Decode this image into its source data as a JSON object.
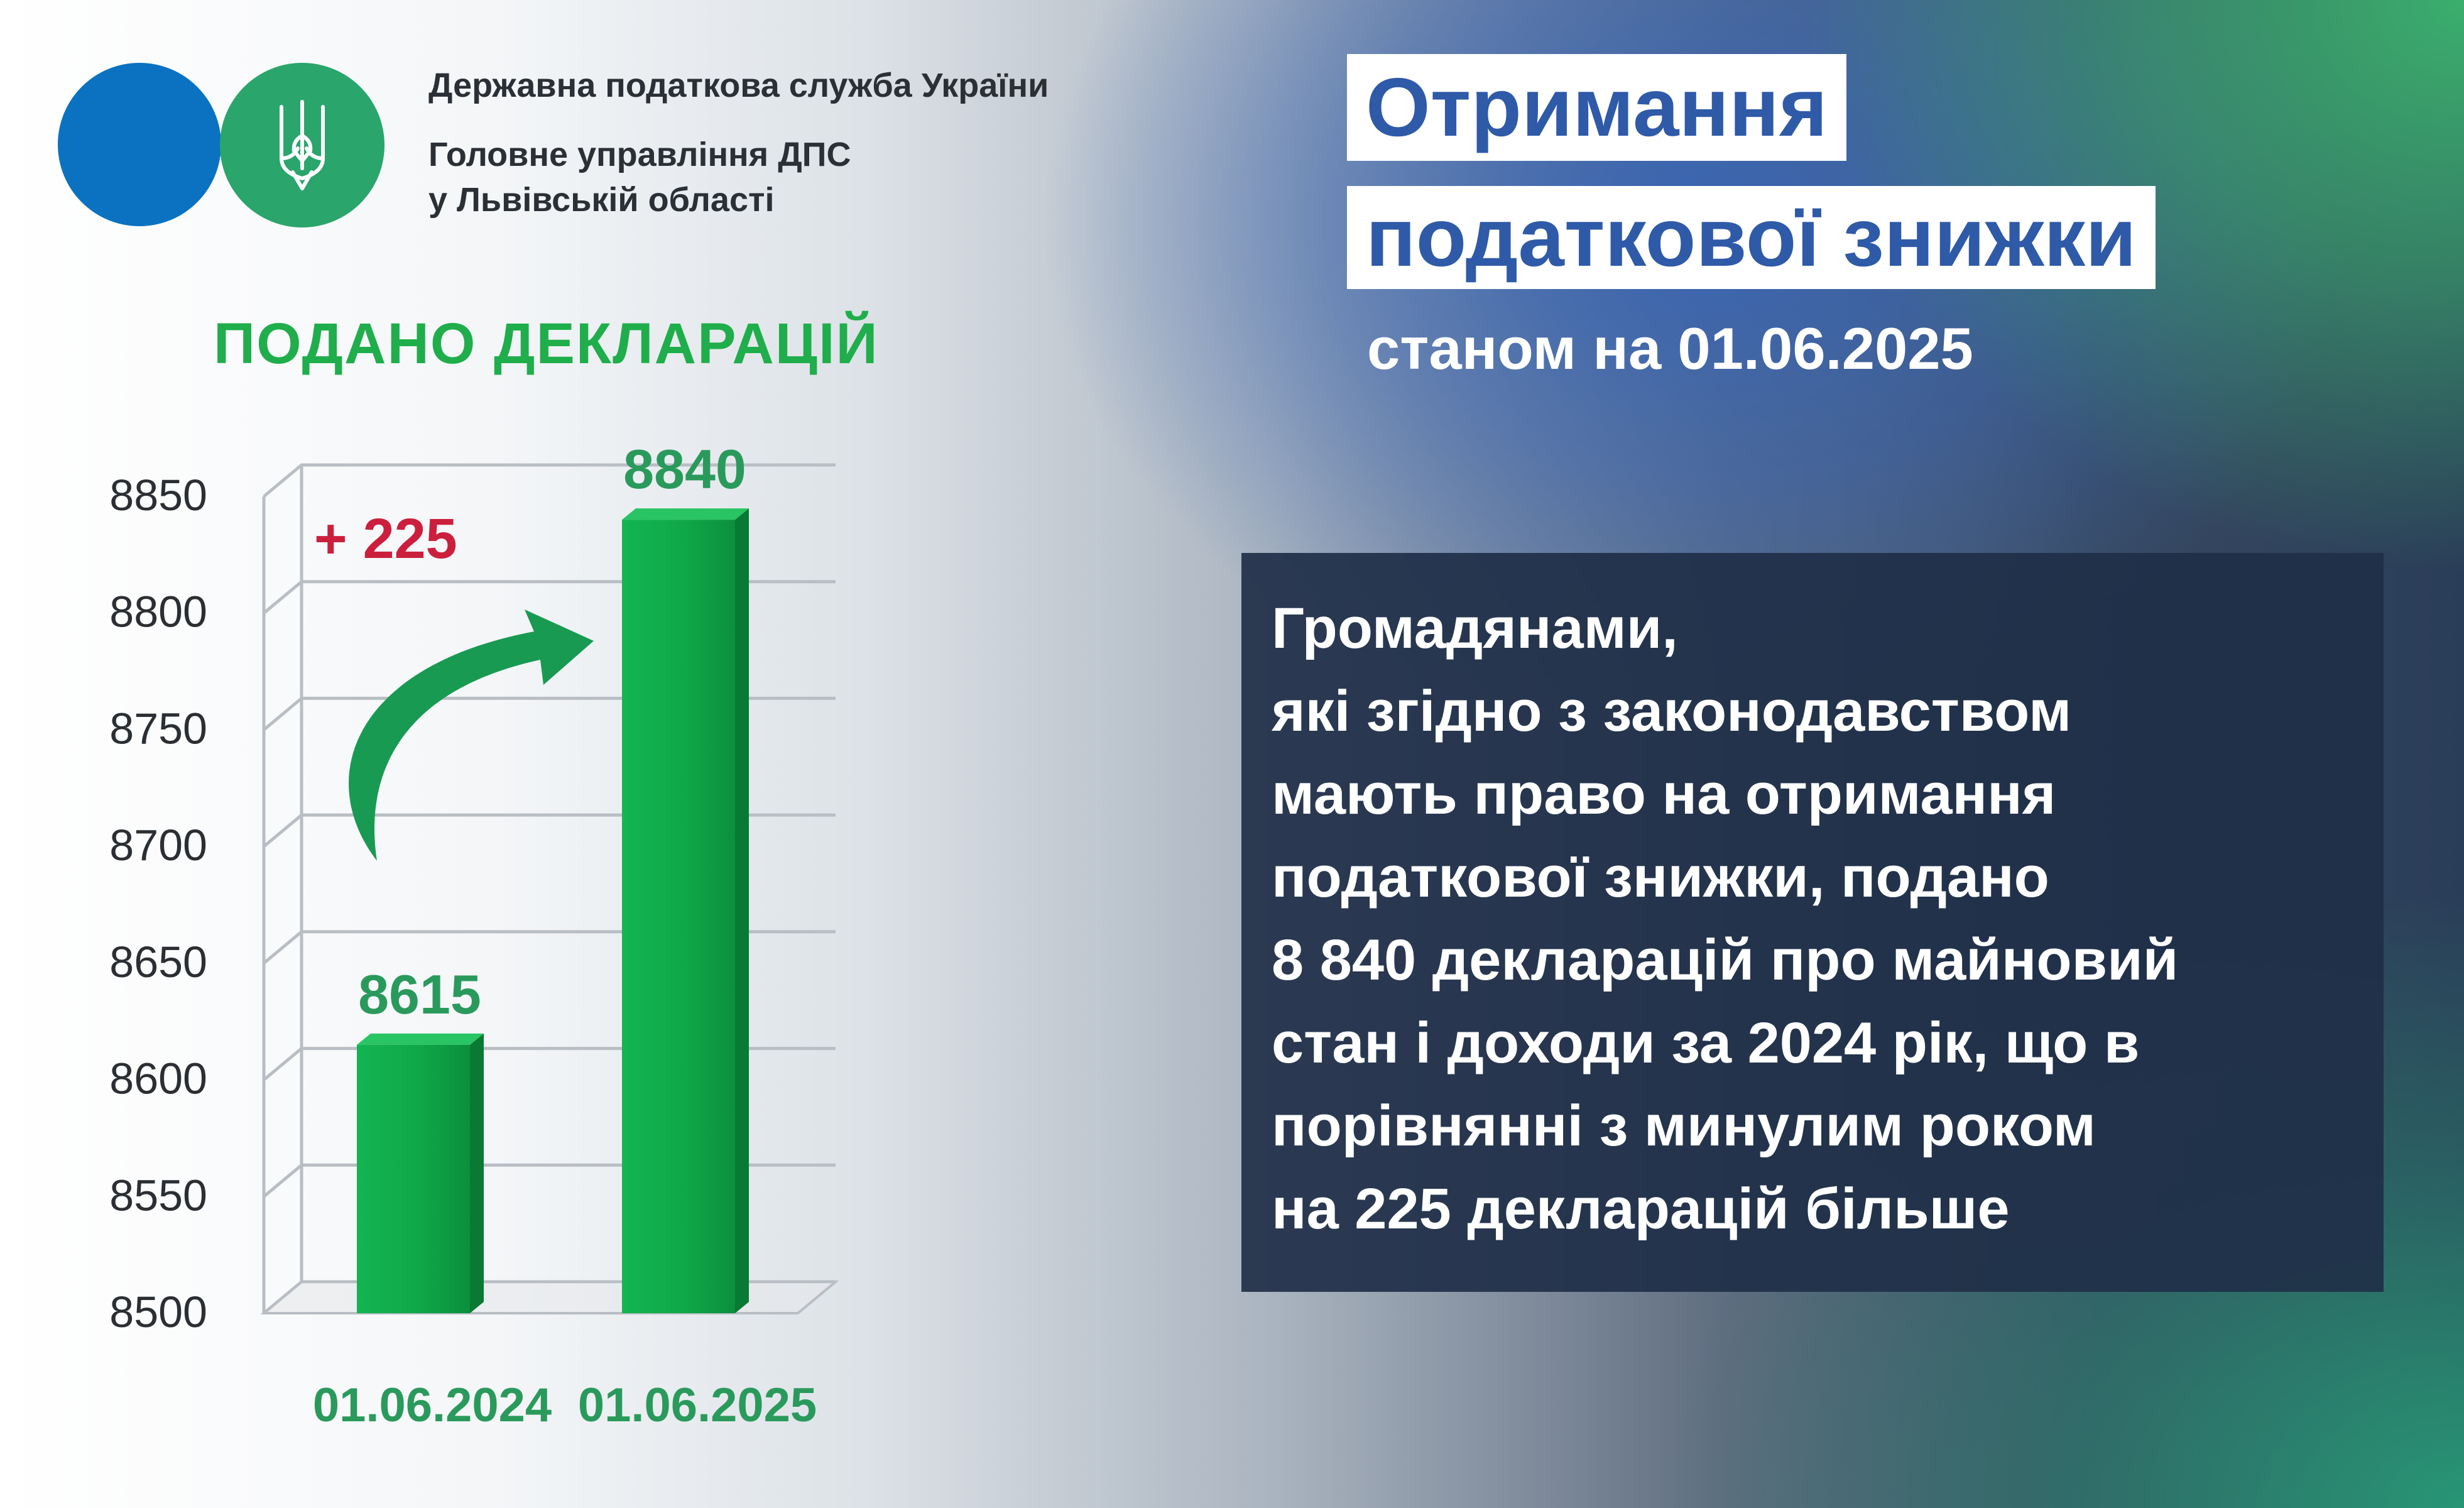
{
  "header": {
    "org_line1": "Державна податкова служба України",
    "org_line2": "Головне управління ДПС",
    "org_line3": "у Львівській області"
  },
  "title": {
    "line1": "Отримання",
    "line2": "податкової знижки",
    "subtitle": "станом на 01.06.2025"
  },
  "info": {
    "lines": [
      "Громадянами,",
      "які згідно з законодавством",
      "мають право на отримання",
      "податкової знижки, подано",
      "8 840 декларацій про майновий",
      "стан і доходи за 2024 рік, що в",
      "порівнянні з минулим роком",
      "на 225 декларацій більше"
    ]
  },
  "chart_data": {
    "type": "bar",
    "title": "ПОДАНО ДЕКЛАРАЦІЙ",
    "categories": [
      "01.06.2024",
      "01.06.2025"
    ],
    "values": [
      8615,
      8840
    ],
    "value_labels": [
      "8615",
      "8840"
    ],
    "ylim": [
      8500,
      8850
    ],
    "yticks": [
      8500,
      8550,
      8600,
      8650,
      8700,
      8750,
      8800,
      8850
    ],
    "grid": true,
    "annotation": "+ 225",
    "colors": {
      "bar": "#12a84a",
      "value_label": "#2a9a5c",
      "category_label": "#2a9a5c",
      "title": "#1fae4b",
      "annotation": "#cc1f3d",
      "arrow": "#189a52"
    }
  },
  "colors": {
    "brand_blue": "#0a72c1",
    "brand_green": "#2aa56b",
    "title_blue": "#2f5aa8"
  }
}
